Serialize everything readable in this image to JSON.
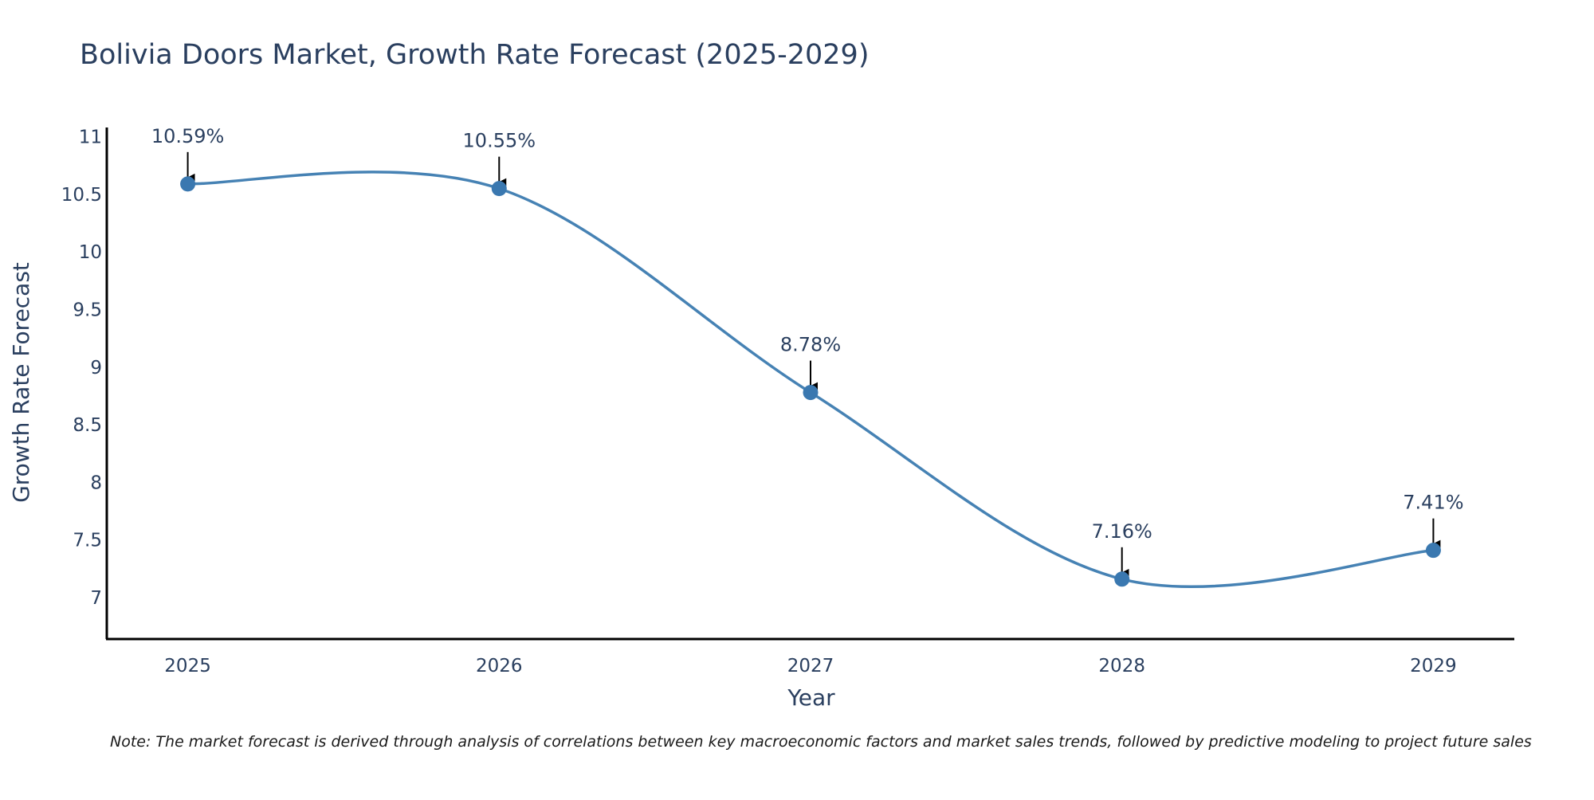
{
  "chart_data": {
    "type": "line",
    "title": "Bolivia Doors Market, Growth Rate Forecast (2025-2029)",
    "xlabel": "Year",
    "ylabel": "Growth Rate Forecast",
    "categories": [
      "2025",
      "2026",
      "2027",
      "2028",
      "2029"
    ],
    "series": [
      {
        "name": "Growth Rate Forecast",
        "values": [
          10.59,
          10.55,
          8.78,
          7.16,
          7.41
        ],
        "labels": [
          "10.59%",
          "10.55%",
          "8.78%",
          "7.16%",
          "7.41%"
        ]
      }
    ],
    "y_ticks": [
      7,
      7.5,
      8,
      8.5,
      9,
      9.5,
      10,
      10.5,
      11
    ],
    "y_tick_labels": [
      "7",
      "7.5",
      "8",
      "8.5",
      "9",
      "9.5",
      "10",
      "10.5",
      "11"
    ],
    "ylim": [
      6.64,
      11.08
    ],
    "xlim": [
      -0.26,
      4.26
    ],
    "line_shape": "spline",
    "grid": false,
    "legend": "none",
    "colors": {
      "line": "#4682b4",
      "marker": "#3a78b0",
      "axis": "#000000",
      "text": "#2a3f5f",
      "arrow": "#000000"
    }
  },
  "note": "Note: The market forecast is derived through analysis of correlations between key macroeconomic factors and market sales trends, followed by predictive modeling to project future sales"
}
